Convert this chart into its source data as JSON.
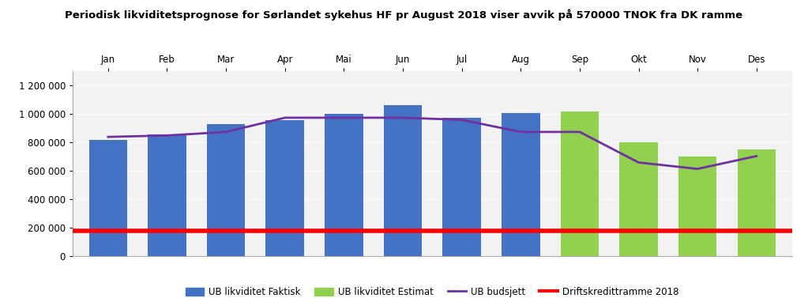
{
  "title": "Periodisk likviditetsprognose for Sørlandet sykehus HF pr August 2018 viser avvik på 570000 TNOK fra DK ramme",
  "months": [
    "Jan",
    "Feb",
    "Mar",
    "Apr",
    "Mai",
    "Jun",
    "Jul",
    "Aug",
    "Sep",
    "Okt",
    "Nov",
    "Des"
  ],
  "ub_faktisk": [
    820000,
    855000,
    930000,
    960000,
    1000000,
    1065000,
    975000,
    1010000,
    null,
    null,
    null,
    null
  ],
  "ub_estimat": [
    null,
    null,
    null,
    null,
    null,
    null,
    null,
    null,
    1020000,
    800000,
    700000,
    750000
  ],
  "ub_budsjett": [
    840000,
    850000,
    875000,
    975000,
    975000,
    975000,
    960000,
    875000,
    875000,
    660000,
    615000,
    705000
  ],
  "driftskredittramme": 180000,
  "bar_color_faktisk": "#4472C4",
  "bar_color_estimat": "#92D050",
  "line_color_budsjett": "#7030A0",
  "line_color_driftskreditt": "#FF0000",
  "ylim": [
    0,
    1300000
  ],
  "yticks": [
    0,
    200000,
    400000,
    600000,
    800000,
    1000000,
    1200000
  ],
  "ytick_labels": [
    "0",
    "200 000",
    "400 000",
    "600 000",
    "800 000",
    "1 000 000",
    "1 200 000"
  ],
  "legend_labels": [
    "UB likviditet Faktisk",
    "UB likviditet Estimat",
    "UB budsjett",
    "Driftskredittramme 2018"
  ],
  "bg_color": "#FFFFFF",
  "plot_bg_color": "#F2F2F2",
  "title_fontsize": 9.5,
  "axis_fontsize": 8.5,
  "legend_fontsize": 8.5
}
